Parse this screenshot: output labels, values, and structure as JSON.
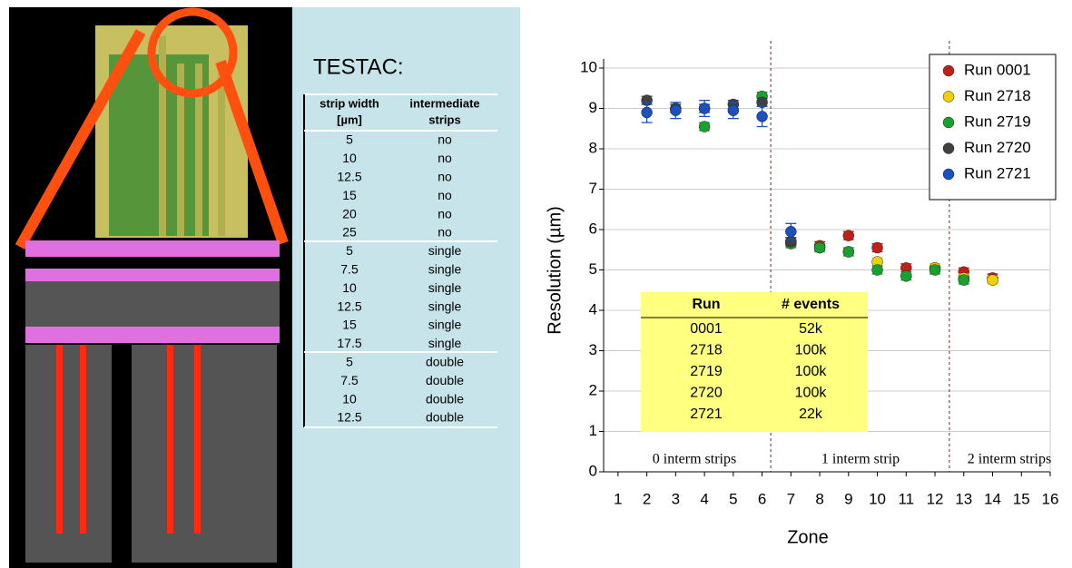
{
  "testac": {
    "title": "TESTAC:",
    "header": [
      [
        "strip width",
        "intermediate"
      ],
      [
        "[µm]",
        "strips"
      ]
    ],
    "rows": [
      [
        "5",
        "no"
      ],
      [
        "10",
        "no"
      ],
      [
        "12.5",
        "no"
      ],
      [
        "15",
        "no"
      ],
      [
        "20",
        "no"
      ],
      [
        "25",
        "no"
      ],
      [
        "5",
        "single"
      ],
      [
        "7.5",
        "single"
      ],
      [
        "10",
        "single"
      ],
      [
        "12.5",
        "single"
      ],
      [
        "15",
        "single"
      ],
      [
        "17.5",
        "single"
      ],
      [
        "5",
        "double"
      ],
      [
        "7.5",
        "double"
      ],
      [
        "10",
        "double"
      ],
      [
        "12.5",
        "double"
      ]
    ]
  },
  "events_table": {
    "header": [
      "Run",
      "# events"
    ],
    "rows": [
      [
        "0001",
        "52k"
      ],
      [
        "2718",
        "100k"
      ],
      [
        "2719",
        "100k"
      ],
      [
        "2720",
        "100k"
      ],
      [
        "2721",
        "22k"
      ]
    ]
  },
  "chart_data": {
    "type": "scatter",
    "x_label": "Zone",
    "y_label": "Resolution (µm)",
    "x": [
      2,
      3,
      4,
      5,
      6,
      7,
      8,
      9,
      10,
      11,
      12,
      13,
      14
    ],
    "series": [
      {
        "name": "Run 0001",
        "color": "#c0201a",
        "values": [
          null,
          null,
          null,
          null,
          null,
          5.7,
          5.6,
          5.85,
          5.55,
          5.05,
          5.05,
          4.95,
          4.8
        ],
        "errors": [
          null,
          null,
          null,
          null,
          null,
          0.1,
          0.1,
          0.1,
          0.1,
          0.1,
          0.1,
          0.1,
          0.1
        ]
      },
      {
        "name": "Run 2718",
        "color": "#f0d000",
        "values": [
          null,
          null,
          null,
          null,
          null,
          5.7,
          5.55,
          5.45,
          5.2,
          4.85,
          5.05,
          4.8,
          4.75
        ],
        "errors": [
          null,
          null,
          null,
          null,
          null,
          0.1,
          0.1,
          0.1,
          0.1,
          0.1,
          0.1,
          0.1,
          0.1
        ]
      },
      {
        "name": "Run 2719",
        "color": "#18a030",
        "values": [
          null,
          null,
          8.55,
          null,
          9.3,
          5.65,
          5.55,
          5.45,
          5.0,
          4.85,
          5.0,
          4.75,
          null
        ],
        "errors": [
          null,
          null,
          0.1,
          null,
          0.1,
          0.1,
          0.1,
          0.1,
          0.1,
          0.1,
          0.1,
          0.1,
          null
        ]
      },
      {
        "name": "Run 2720",
        "color": "#404040",
        "values": [
          9.2,
          9.0,
          9.0,
          9.1,
          9.15,
          5.7,
          null,
          null,
          null,
          null,
          null,
          null,
          null
        ],
        "errors": [
          0.1,
          0.1,
          0.1,
          0.1,
          0.1,
          0.1,
          null,
          null,
          null,
          null,
          null,
          null,
          null
        ]
      },
      {
        "name": "Run 2721",
        "color": "#1a50c0",
        "values": [
          8.9,
          8.95,
          9.0,
          8.95,
          8.8,
          5.95,
          null,
          null,
          null,
          null,
          null,
          null,
          null
        ],
        "errors": [
          0.25,
          0.2,
          0.2,
          0.2,
          0.25,
          0.2,
          null,
          null,
          null,
          null,
          null,
          null,
          null
        ]
      }
    ],
    "xlim": [
      0.5,
      16
    ],
    "ylim": [
      0,
      10
    ],
    "xticks": [
      1,
      2,
      3,
      4,
      5,
      6,
      7,
      8,
      9,
      10,
      11,
      12,
      13,
      14,
      15,
      16
    ],
    "yticks": [
      0,
      1,
      2,
      3,
      4,
      5,
      6,
      7,
      8,
      9,
      10
    ],
    "grid": true,
    "legend": "upper right",
    "vlines": [
      6.3,
      12.5
    ],
    "annotations": [
      "0 interm strips",
      "1 interm strip",
      "2 interm strips"
    ]
  }
}
